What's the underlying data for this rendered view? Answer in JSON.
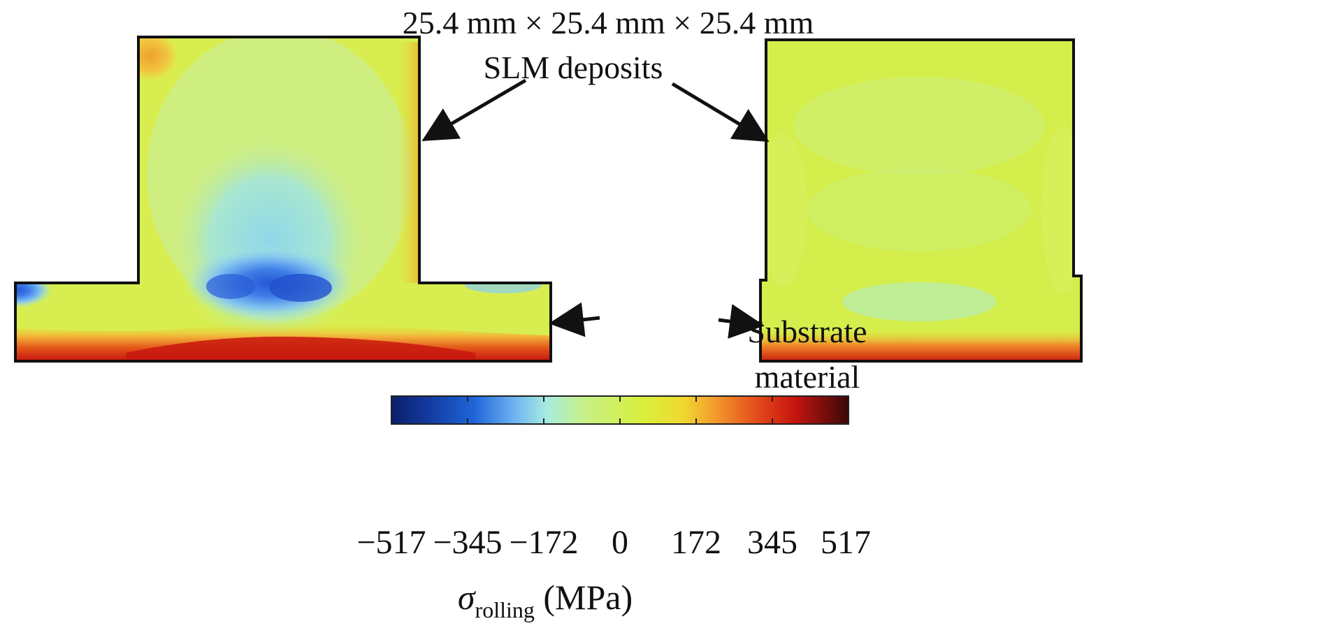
{
  "annotations": {
    "deposit_size": "25.4 mm × 25.4 mm ×  25.4 mm",
    "deposit_name": "SLM deposits",
    "substrate_line1": "Substrate",
    "substrate_line2": "material"
  },
  "colorbar": {
    "ticks": [
      "−517",
      "−345",
      "−172",
      "0",
      "172",
      "345",
      "517"
    ],
    "label_symbol": "σ",
    "label_subscript": "rolling",
    "label_unit": "(MPa)",
    "colors": [
      "#0a1f6b",
      "#1f5ad6",
      "#4f9cf0",
      "#9de6e0",
      "#c8f06a",
      "#e8f030",
      "#f2a23a",
      "#e5461a",
      "#c8160f",
      "#5a0c0c"
    ]
  },
  "contour_colors": {
    "background": "#d4ee55",
    "cool": "#5aa4ee",
    "warm": "#f0b43c",
    "hot": "#d5220e",
    "outline": "#111111"
  }
}
